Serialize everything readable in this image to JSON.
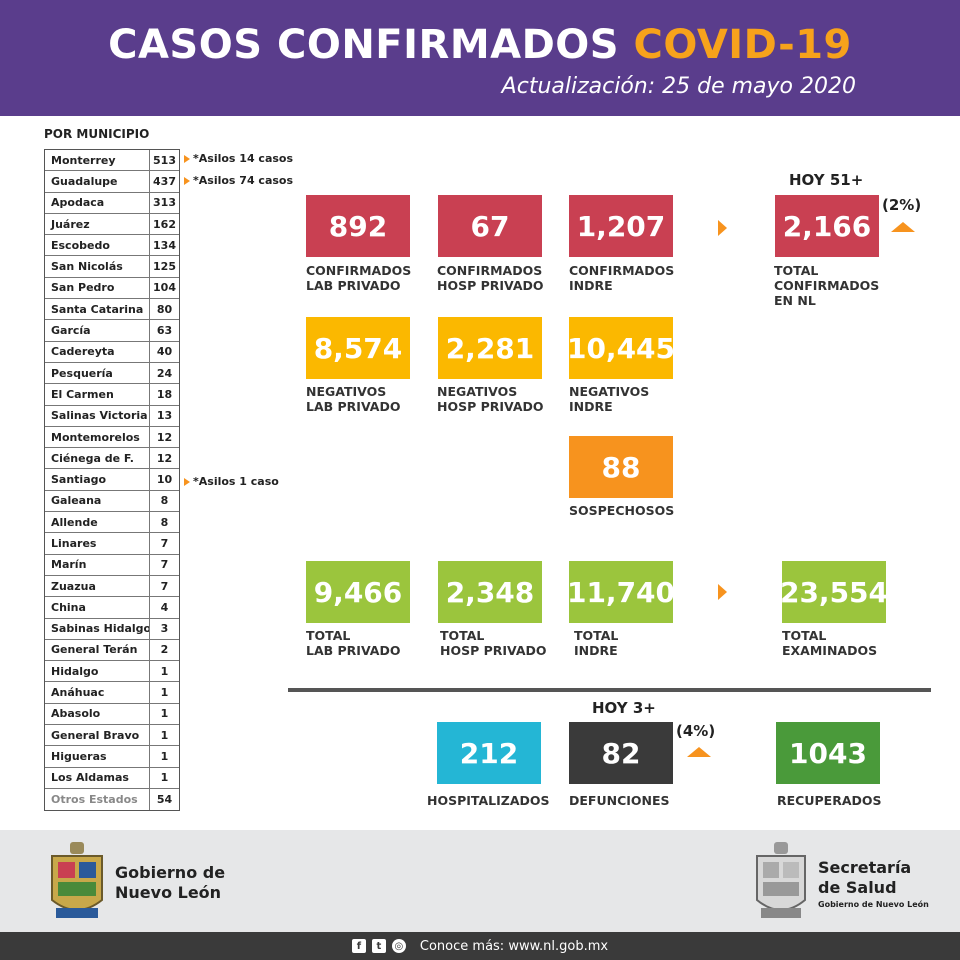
{
  "header": {
    "title_main": "CASOS CONFIRMADOS",
    "title_highlight": "COVID-19",
    "subtitle": "Actualización: 25 de mayo 2020"
  },
  "municipios": {
    "heading": "POR MUNICIPIO",
    "rows": [
      {
        "name": "Monterrey",
        "value": "513"
      },
      {
        "name": "Guadalupe",
        "value": "437"
      },
      {
        "name": "Apodaca",
        "value": "313"
      },
      {
        "name": "Juárez",
        "value": "162"
      },
      {
        "name": "Escobedo",
        "value": "134"
      },
      {
        "name": "San Nicolás",
        "value": "125"
      },
      {
        "name": "San Pedro",
        "value": "104"
      },
      {
        "name": "Santa Catarina",
        "value": "80"
      },
      {
        "name": "García",
        "value": "63"
      },
      {
        "name": "Cadereyta",
        "value": "40"
      },
      {
        "name": "Pesquería",
        "value": "24"
      },
      {
        "name": "El Carmen",
        "value": "18"
      },
      {
        "name": "Salinas Victoria",
        "value": "13"
      },
      {
        "name": "Montemorelos",
        "value": "12"
      },
      {
        "name": "Ciénega de F.",
        "value": "12"
      },
      {
        "name": "Santiago",
        "value": "10"
      },
      {
        "name": "Galeana",
        "value": "8"
      },
      {
        "name": "Allende",
        "value": "8"
      },
      {
        "name": "Linares",
        "value": "7"
      },
      {
        "name": "Marín",
        "value": "7"
      },
      {
        "name": "Zuazua",
        "value": "7"
      },
      {
        "name": "China",
        "value": "4"
      },
      {
        "name": "Sabinas Hidalgo",
        "value": "3"
      },
      {
        "name": "General Terán",
        "value": "2"
      },
      {
        "name": "Hidalgo",
        "value": "1"
      },
      {
        "name": "Anáhuac",
        "value": "1"
      },
      {
        "name": "Abasolo",
        "value": "1"
      },
      {
        "name": "General Bravo",
        "value": "1"
      },
      {
        "name": "Higueras",
        "value": "1"
      },
      {
        "name": "Los Aldamas",
        "value": "1"
      },
      {
        "name": "Otros Estados",
        "value": "54"
      }
    ],
    "notes": {
      "monterrey": "*Asilos 14 casos",
      "guadalupe": "*Asilos 74 casos",
      "santiago": "*Asilos 1 caso"
    }
  },
  "confirmados": {
    "lab_privado": {
      "value": "892",
      "label": "CONFIRMADOS\nLAB PRIVADO"
    },
    "hosp_privado": {
      "value": "67",
      "label": "CONFIRMADOS\nHOSP PRIVADO"
    },
    "indre": {
      "value": "1,207",
      "label": "CONFIRMADOS\nINDRE"
    },
    "total": {
      "value": "2,166",
      "label": "TOTAL\nCONFIRMADOS\nEN NL",
      "today": "HOY 51+",
      "pct": "(2%)"
    }
  },
  "negativos": {
    "lab_privado": {
      "value": "8,574",
      "label": "NEGATIVOS\nLAB PRIVADO"
    },
    "hosp_privado": {
      "value": "2,281",
      "label": "NEGATIVOS\nHOSP PRIVADO"
    },
    "indre": {
      "value": "10,445",
      "label": "NEGATIVOS\nINDRE"
    }
  },
  "sospechosos": {
    "value": "88",
    "label": "SOSPECHOSOS"
  },
  "totales": {
    "lab_privado": {
      "value": "9,466",
      "label": "TOTAL\nLAB PRIVADO"
    },
    "hosp_privado": {
      "value": "2,348",
      "label": "TOTAL\nHOSP PRIVADO"
    },
    "indre": {
      "value": "11,740",
      "label": "TOTAL\nINDRE"
    },
    "examinados": {
      "value": "23,554",
      "label": "TOTAL\nEXAMINADOS"
    }
  },
  "estado": {
    "hospitalizados": {
      "value": "212",
      "label": "HOSPITALIZADOS"
    },
    "defunciones": {
      "value": "82",
      "label": "DEFUNCIONES",
      "today": "HOY 3+",
      "pct": "(4%)"
    },
    "recuperados": {
      "value": "1043",
      "label": "RECUPERADOS"
    }
  },
  "footer": {
    "gobierno": "Gobierno de\nNuevo León",
    "secretaria": "Secretaría\nde Salud",
    "secretaria_sub": "Gobierno de Nuevo León",
    "conoce": "Conoce más: www.nl.gob.mx"
  },
  "colors": {
    "header": "#5a3d8c",
    "accent": "#f7a21b",
    "confirmados": "#c94052",
    "negativos": "#fbb800",
    "sospechosos": "#f7931e",
    "totales": "#9bc53d",
    "hospitalizados": "#24b6d5",
    "defunciones": "#3a3a3a",
    "recuperados": "#4a9a3a"
  },
  "icons": [
    "facebook-icon",
    "twitter-icon",
    "instagram-icon",
    "nl-coat-of-arms-icon",
    "salud-coat-of-arms-icon",
    "arrow-right-icon",
    "arrow-up-icon"
  ]
}
